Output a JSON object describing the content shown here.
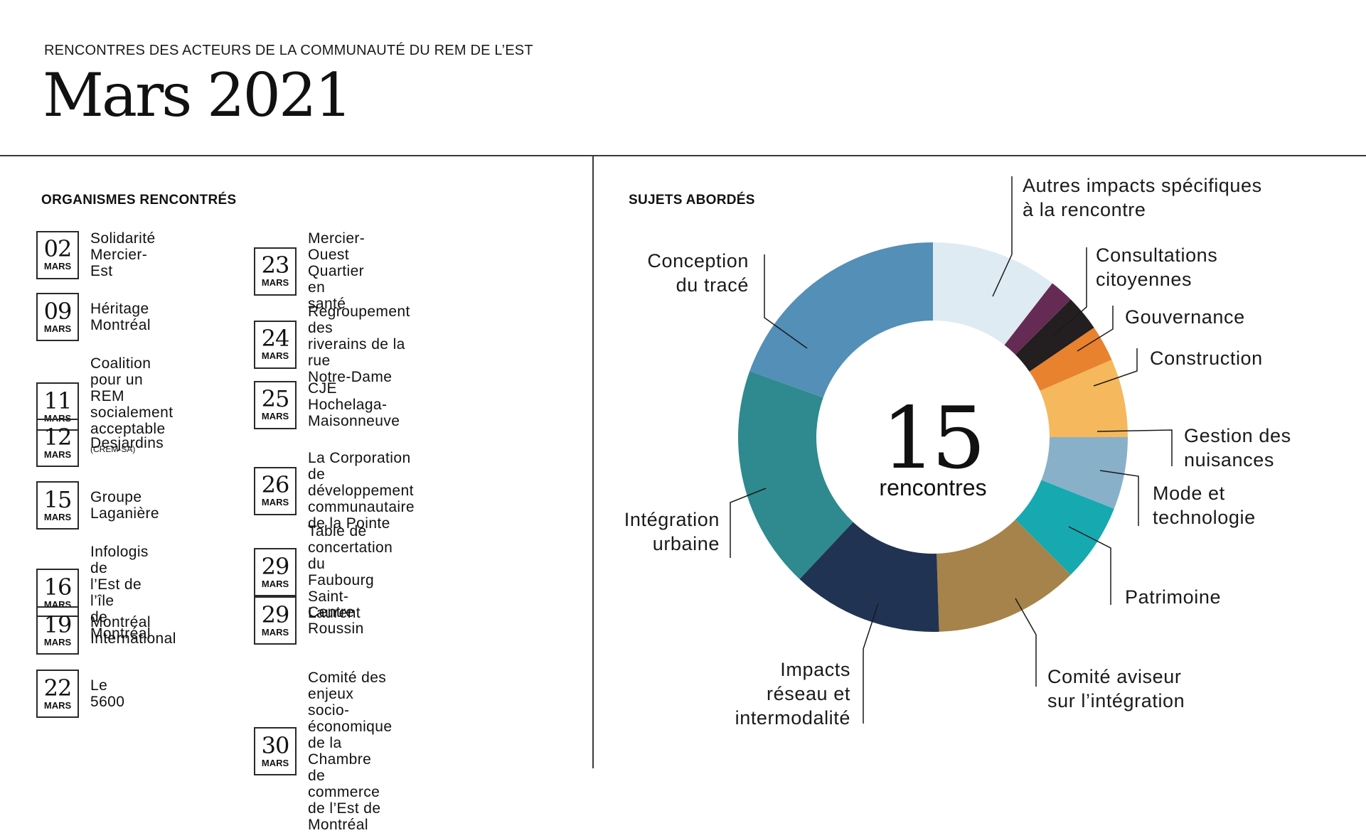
{
  "header": {
    "subtitle": "RENCONTRES DES ACTEURS DE LA COMMUNAUTÉ DU REM DE L’EST",
    "title": "Mars 2021"
  },
  "left": {
    "section_title": "ORGANISMES RENCONTRÉS",
    "meetings_col1": [
      {
        "day": "02",
        "month": "MARS",
        "org": "Solidarité\nMercier-Est"
      },
      {
        "day": "09",
        "month": "MARS",
        "org": "Héritage\nMontréal"
      },
      {
        "day": "11",
        "month": "MARS",
        "org": "Coalition pour un\nREM socialement\nacceptable",
        "suffix": "(CREM-SA)"
      },
      {
        "day": "12",
        "month": "MARS",
        "org": "Desjardins"
      },
      {
        "day": "15",
        "month": "MARS",
        "org": "Groupe\nLaganière"
      },
      {
        "day": "16",
        "month": "MARS",
        "org": "Infologis de\nl’Est de l’île\nde Montréal"
      },
      {
        "day": "19",
        "month": "MARS",
        "org": "Montréal\nInternational"
      },
      {
        "day": "22",
        "month": "MARS",
        "org": "Le 5600"
      }
    ],
    "meetings_col2": [
      {
        "day": "23",
        "month": "MARS",
        "org": "Mercier-Ouest\nQuartier en santé"
      },
      {
        "day": "24",
        "month": "MARS",
        "org": "Regroupement des\nriverains de la rue\nNotre-Dame"
      },
      {
        "day": "25",
        "month": "MARS",
        "org": "CJE Hochelaga-\nMaisonneuve"
      },
      {
        "day": "26",
        "month": "MARS",
        "org": "La Corporation de\ndéveloppement\ncommunautaire de la Pointe"
      },
      {
        "day": "29",
        "month": "MARS",
        "org": "Table de concertation\ndu Faubourg Saint-Laurent"
      },
      {
        "day": "29",
        "month": "MARS",
        "org": "Centre\nRoussin"
      },
      {
        "day": "30",
        "month": "MARS",
        "org": "Comité des enjeux\nsocio-économique de la Chambre\nde commerce de l’Est de Montréal"
      }
    ]
  },
  "right": {
    "section_title": "SUJETS ABORDÉS"
  },
  "chart_data": {
    "type": "pie",
    "center_value": "15",
    "center_label": "rencontres",
    "slices": [
      {
        "label": "Autres impacts spécifiques\nà la rencontre",
        "value": 10.5,
        "color": "#dfebf2"
      },
      {
        "label": "Consultations\ncitoyennes",
        "value": 2.0,
        "color": "#662b55"
      },
      {
        "label": "Gouvernance",
        "value": 3.0,
        "color": "#231f20"
      },
      {
        "label": "Construction",
        "value": 3.0,
        "color": "#e8822f"
      },
      {
        "label": "Gestion des\nnuisances",
        "value": 6.5,
        "color": "#f5b85c"
      },
      {
        "label": "Mode et\ntechnologie",
        "value": 6.0,
        "color": "#89b0c9"
      },
      {
        "label": "Patrimoine",
        "value": 6.5,
        "color": "#16a9b0"
      },
      {
        "label": "Comité aviseur\nsur l’intégration",
        "value": 12.0,
        "color": "#a6834b"
      },
      {
        "label": "Impacts\nréseau et\nintermodalité",
        "value": 12.5,
        "color": "#213352"
      },
      {
        "label": "Intégration\nurbaine",
        "value": 18.5,
        "color": "#2e8a8e"
      },
      {
        "label": "Conception\ndu tracé",
        "value": 19.5,
        "color": "#538fb7"
      }
    ]
  }
}
